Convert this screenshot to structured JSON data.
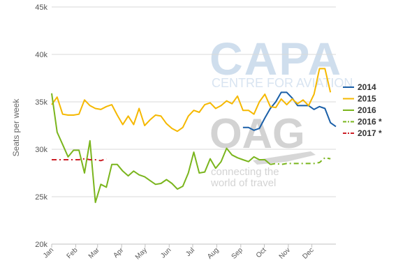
{
  "watermarks": {
    "capa_logo": "CAPA",
    "capa_tagline": "CENTRE FOR AVIATION",
    "oag_logo": "OAG",
    "oag_tagline_1": "connecting the",
    "oag_tagline_2": "world of travel"
  },
  "chart_data": {
    "type": "line",
    "title": "",
    "xlabel": "",
    "ylabel": "Seats per week",
    "ylim": [
      20000,
      45000
    ],
    "yticks": [
      20000,
      25000,
      30000,
      35000,
      40000,
      45000
    ],
    "ytick_labels": [
      "20k",
      "25k",
      "30k",
      "35k",
      "40k",
      "45k"
    ],
    "xlim": [
      0,
      52
    ],
    "xticks": [
      0,
      4.4,
      8.4,
      12.8,
      17.1,
      21.5,
      25.8,
      30.2,
      34.6,
      38.9,
      43.3,
      47.6
    ],
    "xtick_labels": [
      "Jan",
      "Feb",
      "Mar",
      "Apr",
      "May",
      "Jun",
      "Jul",
      "Aug",
      "Sep",
      "Oct",
      "Nov",
      "Dec"
    ],
    "x_unit": "week of year",
    "grid": {
      "x": false,
      "y": true
    },
    "legend": "right",
    "series": [
      {
        "name": "2014",
        "color": "#1a5fa8",
        "dash": "solid",
        "points": [
          [
            35,
            32300
          ],
          [
            36,
            32300
          ],
          [
            37,
            32000
          ],
          [
            38,
            32200
          ],
          [
            39,
            33300
          ],
          [
            40,
            34300
          ],
          [
            41,
            35000
          ],
          [
            42,
            36000
          ],
          [
            43,
            36000
          ],
          [
            44,
            35400
          ],
          [
            45,
            34600
          ],
          [
            46,
            34600
          ],
          [
            47,
            34600
          ],
          [
            48,
            34200
          ],
          [
            49,
            34500
          ],
          [
            50,
            34300
          ],
          [
            51,
            32800
          ],
          [
            52,
            32400
          ]
        ]
      },
      {
        "name": "2015",
        "color": "#f5b800",
        "dash": "solid",
        "points": [
          [
            0,
            34700
          ],
          [
            1,
            35500
          ],
          [
            2,
            33700
          ],
          [
            3,
            33600
          ],
          [
            4,
            33600
          ],
          [
            5,
            33700
          ],
          [
            6,
            35200
          ],
          [
            7,
            34600
          ],
          [
            8,
            34300
          ],
          [
            9,
            34200
          ],
          [
            10,
            34500
          ],
          [
            11,
            34700
          ],
          [
            12,
            33600
          ],
          [
            13,
            32600
          ],
          [
            14,
            33500
          ],
          [
            15,
            32600
          ],
          [
            16,
            34300
          ],
          [
            17,
            32500
          ],
          [
            18,
            33100
          ],
          [
            19,
            33600
          ],
          [
            20,
            33500
          ],
          [
            21,
            32700
          ],
          [
            22,
            32200
          ],
          [
            23,
            31900
          ],
          [
            24,
            32300
          ],
          [
            25,
            33500
          ],
          [
            26,
            34100
          ],
          [
            27,
            33900
          ],
          [
            28,
            34700
          ],
          [
            29,
            34900
          ],
          [
            30,
            34300
          ],
          [
            31,
            34600
          ],
          [
            32,
            35100
          ],
          [
            33,
            34800
          ],
          [
            34,
            35600
          ],
          [
            35,
            34100
          ],
          [
            36,
            34100
          ],
          [
            37,
            33700
          ],
          [
            38,
            35000
          ],
          [
            39,
            35800
          ],
          [
            40,
            34500
          ],
          [
            41,
            34400
          ],
          [
            42,
            35300
          ],
          [
            43,
            34700
          ],
          [
            44,
            35300
          ],
          [
            45,
            34800
          ],
          [
            46,
            35200
          ],
          [
            47,
            34600
          ],
          [
            48,
            35800
          ],
          [
            49,
            38500
          ],
          [
            50,
            38500
          ],
          [
            51,
            36000
          ]
        ]
      },
      {
        "name": "2016",
        "color": "#7ab51d",
        "dash": "solid",
        "points": [
          [
            0,
            35900
          ],
          [
            1,
            31800
          ],
          [
            2,
            30500
          ],
          [
            3,
            29200
          ],
          [
            4,
            29900
          ],
          [
            5,
            29900
          ],
          [
            6,
            27500
          ],
          [
            7,
            30900
          ],
          [
            8,
            24400
          ],
          [
            9,
            26300
          ],
          [
            10,
            26000
          ],
          [
            11,
            28400
          ],
          [
            12,
            28400
          ],
          [
            13,
            27700
          ],
          [
            14,
            27200
          ],
          [
            15,
            27700
          ],
          [
            16,
            27300
          ],
          [
            17,
            27100
          ],
          [
            18,
            26700
          ],
          [
            19,
            26300
          ],
          [
            20,
            26400
          ],
          [
            21,
            26800
          ],
          [
            22,
            26400
          ],
          [
            23,
            25800
          ],
          [
            24,
            26100
          ],
          [
            25,
            27500
          ],
          [
            26,
            29700
          ],
          [
            27,
            27500
          ],
          [
            28,
            27600
          ],
          [
            29,
            29000
          ],
          [
            30,
            28000
          ],
          [
            31,
            28700
          ],
          [
            32,
            30100
          ],
          [
            33,
            29400
          ],
          [
            34,
            29100
          ],
          [
            35,
            28900
          ],
          [
            36,
            28700
          ],
          [
            37,
            29200
          ],
          [
            38,
            28900
          ],
          [
            39,
            28900
          ],
          [
            40,
            28400
          ]
        ]
      },
      {
        "name": "2016 *",
        "color": "#7ab51d",
        "dash": "dashdot",
        "points": [
          [
            40,
            28400
          ],
          [
            41,
            28500
          ],
          [
            42,
            28400
          ],
          [
            43,
            28500
          ],
          [
            44,
            28500
          ],
          [
            45,
            28500
          ],
          [
            46,
            28500
          ],
          [
            47,
            28500
          ],
          [
            48,
            28500
          ],
          [
            49,
            28600
          ],
          [
            50,
            29100
          ],
          [
            51,
            29000
          ]
        ]
      },
      {
        "name": "2017 *",
        "color": "#cc1f26",
        "dash": "dashdot",
        "points": [
          [
            0,
            28900
          ],
          [
            1,
            28900
          ],
          [
            2,
            28900
          ],
          [
            3,
            28900
          ],
          [
            4,
            28900
          ],
          [
            5,
            28900
          ],
          [
            6,
            29000
          ],
          [
            7,
            28900
          ],
          [
            8,
            28900
          ],
          [
            9,
            28800
          ],
          [
            10,
            29000
          ]
        ]
      }
    ]
  }
}
